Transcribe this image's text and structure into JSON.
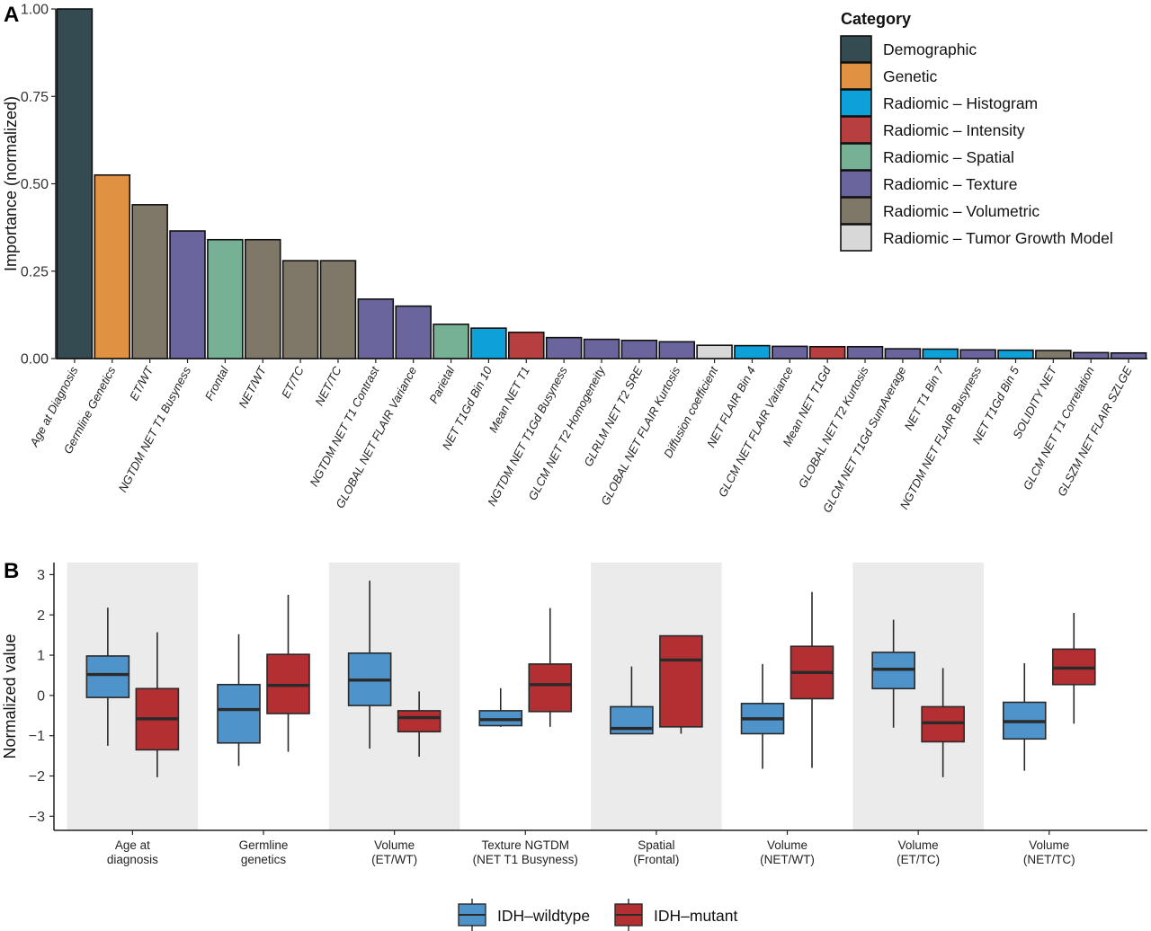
{
  "chart_data": [
    {
      "type": "bar",
      "panel": "A",
      "ylabel": "Importance (normalized)",
      "ylim": [
        0,
        1
      ],
      "yticks": [
        "0.00",
        "0.25",
        "0.50",
        "0.75",
        "1.00"
      ],
      "categories": [
        "Age at Diagnosis",
        "Germline Genetics",
        "ET/WT",
        "NGTDM NET T1 Busyness",
        "Frontal",
        "NET/WT",
        "ET/TC",
        "NET/TC",
        "NGTDM NET T1 Contrast",
        "GLOBAL NET FLAIR Variance",
        "Parietal",
        "NET T1Gd Bin 10",
        "Mean NET T1",
        "NGTDM NET T1Gd Busyness",
        "GLCM NET T2 Homogeneity",
        "GLRLM NET T2 SRE",
        "GLOBAL NET FLAIR Kurtosis",
        "Diffusion coefficient",
        "NET FLAIR Bin 4",
        "GLCM NET FLAIR Variance",
        "Mean NET T1Gd",
        "GLOBAL NET T2 Kurtosis",
        "GLCM NET T1Gd SumAverage",
        "NET T1 Bin 7",
        "NGTDM NET FLAIR Busyness",
        "NET T1Gd Bin 5",
        "SOLIDITY NET",
        "GLCM NET T1 Correlation",
        "GLSZM NET FLAIR SZLGE"
      ],
      "values": [
        1.0,
        0.525,
        0.44,
        0.365,
        0.34,
        0.34,
        0.28,
        0.28,
        0.17,
        0.15,
        0.098,
        0.087,
        0.075,
        0.06,
        0.055,
        0.052,
        0.048,
        0.038,
        0.037,
        0.035,
        0.034,
        0.034,
        0.028,
        0.027,
        0.025,
        0.024,
        0.023,
        0.017,
        0.016
      ],
      "bar_category": [
        "Demographic",
        "Genetic",
        "Radiomic – Volumetric",
        "Radiomic – Texture",
        "Radiomic – Spatial",
        "Radiomic – Volumetric",
        "Radiomic – Volumetric",
        "Radiomic – Volumetric",
        "Radiomic – Texture",
        "Radiomic – Texture",
        "Radiomic – Spatial",
        "Radiomic – Histogram",
        "Radiomic – Intensity",
        "Radiomic – Texture",
        "Radiomic – Texture",
        "Radiomic – Texture",
        "Radiomic – Texture",
        "Radiomic – Tumor Growth Model",
        "Radiomic – Histogram",
        "Radiomic – Texture",
        "Radiomic – Intensity",
        "Radiomic – Texture",
        "Radiomic – Texture",
        "Radiomic – Histogram",
        "Radiomic – Texture",
        "Radiomic – Histogram",
        "Radiomic – Volumetric",
        "Radiomic – Texture",
        "Radiomic – Texture"
      ],
      "legend": {
        "title": "Category",
        "position": "top-right",
        "entries": [
          {
            "name": "Demographic",
            "color": "#354b52"
          },
          {
            "name": "Genetic",
            "color": "#e09142"
          },
          {
            "name": "Radiomic – Histogram",
            "color": "#0ea0d8"
          },
          {
            "name": "Radiomic – Intensity",
            "color": "#b83f40"
          },
          {
            "name": "Radiomic – Spatial",
            "color": "#76b095"
          },
          {
            "name": "Radiomic – Texture",
            "color": "#6a659d"
          },
          {
            "name": "Radiomic – Volumetric",
            "color": "#7f7869"
          },
          {
            "name": "Radiomic – Tumor Growth Model",
            "color": "#d8d8d8"
          }
        ]
      }
    },
    {
      "type": "box",
      "panel": "B",
      "ylabel": "Normalized value",
      "ylim": [
        -3.35,
        3.3
      ],
      "yticks": [
        "-3",
        "-2",
        "-1",
        "0",
        "1",
        "2",
        "3"
      ],
      "groups": [
        [
          "Age at",
          "diagnosis"
        ],
        [
          "Germline",
          "genetics"
        ],
        [
          "Volume",
          "(ET/WT)"
        ],
        [
          "Texture NGTDM",
          "(NET T1 Busyness)"
        ],
        [
          "Spatial",
          "(Frontal)"
        ],
        [
          "Volume",
          "(NET/WT)"
        ],
        [
          "Volume",
          "(ET/TC)"
        ],
        [
          "Volume",
          "(NET/TC)"
        ]
      ],
      "series": [
        {
          "name": "IDH–wildtype",
          "color": "#4f93cb",
          "boxes": [
            {
              "min": -1.25,
              "q1": -0.05,
              "median": 0.52,
              "q3": 0.98,
              "max": 2.18
            },
            {
              "min": -1.75,
              "q1": -1.18,
              "median": -0.35,
              "q3": 0.27,
              "max": 1.52
            },
            {
              "min": -1.32,
              "q1": -0.25,
              "median": 0.38,
              "q3": 1.05,
              "max": 2.85
            },
            {
              "min": -0.78,
              "q1": -0.75,
              "median": -0.6,
              "q3": -0.38,
              "max": 0.18
            },
            {
              "min": -0.95,
              "q1": -0.95,
              "median": -0.82,
              "q3": -0.28,
              "max": 0.72
            },
            {
              "min": -1.82,
              "q1": -0.95,
              "median": -0.58,
              "q3": -0.2,
              "max": 0.78
            },
            {
              "min": -0.8,
              "q1": 0.17,
              "median": 0.65,
              "q3": 1.07,
              "max": 1.88
            },
            {
              "min": -1.87,
              "q1": -1.08,
              "median": -0.65,
              "q3": -0.17,
              "max": 0.8
            }
          ]
        },
        {
          "name": "IDH–mutant",
          "color": "#b32f32",
          "boxes": [
            {
              "min": -2.03,
              "q1": -1.35,
              "median": -0.58,
              "q3": 0.17,
              "max": 1.57
            },
            {
              "min": -1.4,
              "q1": -0.45,
              "median": 0.25,
              "q3": 1.02,
              "max": 2.5
            },
            {
              "min": -1.52,
              "q1": -0.9,
              "median": -0.55,
              "q3": -0.38,
              "max": 0.1
            },
            {
              "min": -0.78,
              "q1": -0.4,
              "median": 0.27,
              "q3": 0.78,
              "max": 2.17
            },
            {
              "min": -0.95,
              "q1": -0.78,
              "median": 0.88,
              "q3": 1.48,
              "max": 1.48
            },
            {
              "min": -1.8,
              "q1": -0.08,
              "median": 0.57,
              "q3": 1.22,
              "max": 2.57
            },
            {
              "min": -2.03,
              "q1": -1.15,
              "median": -0.68,
              "q3": -0.28,
              "max": 0.68
            },
            {
              "min": -0.7,
              "q1": 0.27,
              "median": 0.68,
              "q3": 1.15,
              "max": 2.05
            }
          ]
        }
      ],
      "background": {
        "shaded_groups": [
          0,
          2,
          4,
          6
        ],
        "shade_color": "#ebebeb"
      },
      "legend": {
        "position": "bottom"
      }
    }
  ]
}
